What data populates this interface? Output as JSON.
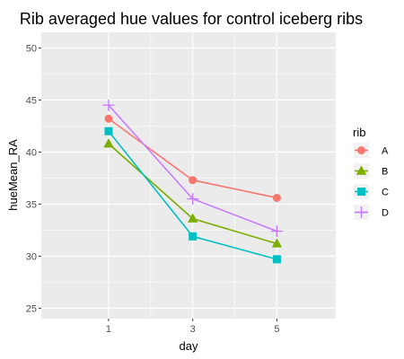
{
  "chart_data": {
    "type": "line",
    "title": "Rib averaged hue values for control iceberg ribs",
    "xlabel": "day",
    "ylabel": "hueMean_RA",
    "x": [
      1,
      3,
      5
    ],
    "x_tick_labels": [
      "1",
      "3",
      "5"
    ],
    "xlim": [
      -0.6,
      6.4
    ],
    "ylim": [
      24,
      51.5
    ],
    "y_ticks": [
      25,
      30,
      35,
      40,
      45,
      50
    ],
    "y_tick_labels": [
      "25",
      "30",
      "35",
      "40",
      "45",
      "50"
    ],
    "grid": true,
    "legend_title": "rib",
    "legend_position": "right",
    "series": [
      {
        "name": "A",
        "values": [
          43.2,
          37.3,
          35.6
        ],
        "color": "#F8766D",
        "marker": "circle"
      },
      {
        "name": "B",
        "values": [
          40.8,
          33.6,
          31.2
        ],
        "color": "#7CAE00",
        "marker": "triangle"
      },
      {
        "name": "C",
        "values": [
          42.0,
          31.9,
          29.7
        ],
        "color": "#00BFC4",
        "marker": "square"
      },
      {
        "name": "D",
        "values": [
          44.5,
          35.5,
          32.4
        ],
        "color": "#C77CFF",
        "marker": "plus"
      }
    ]
  }
}
